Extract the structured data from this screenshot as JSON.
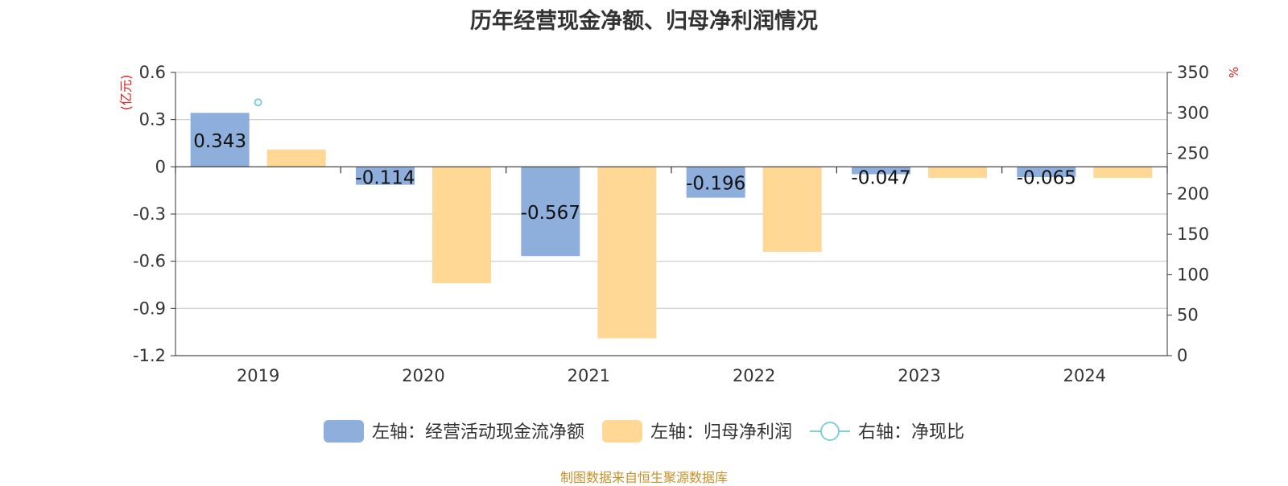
{
  "chart_data": {
    "type": "bar",
    "title": "历年经营现金净额、归母净利润情况",
    "source": "制图数据来自恒生聚源数据库",
    "categories": [
      "2019",
      "2020",
      "2021",
      "2022",
      "2023",
      "2024"
    ],
    "left_axis": {
      "unit_label": "(亿元)",
      "ylim": [
        -1.2,
        0.6
      ],
      "ticks": [
        0.6,
        0.3,
        0,
        -0.3,
        -0.6,
        -0.9,
        -1.2
      ],
      "tick_labels": [
        "0.6",
        "0.3",
        "0",
        "-0.3",
        "-0.6",
        "-0.9",
        "-1.2"
      ]
    },
    "right_axis": {
      "unit_label": "%",
      "ylim": [
        0,
        350
      ],
      "ticks": [
        350,
        300,
        250,
        200,
        150,
        100,
        50,
        0
      ],
      "tick_labels": [
        "350",
        "300",
        "250",
        "200",
        "150",
        "100",
        "50",
        "0"
      ]
    },
    "series": [
      {
        "name": "左轴：经营活动现金流净额",
        "type": "bar",
        "axis": "left",
        "color": "#8eaedb",
        "values": [
          0.343,
          -0.114,
          -0.567,
          -0.196,
          -0.047,
          -0.065
        ],
        "labels": [
          "0.343",
          "-0.114",
          "-0.567",
          "-0.196",
          "-0.047",
          "-0.065"
        ]
      },
      {
        "name": "左轴：归母净利润",
        "type": "bar",
        "axis": "left",
        "color": "#ffd896",
        "values": [
          0.11,
          -0.74,
          -1.09,
          -0.54,
          -0.07,
          -0.07
        ]
      },
      {
        "name": "右轴：净现比",
        "type": "line",
        "axis": "right",
        "color": "#7fd0dc",
        "values": [
          313,
          null,
          null,
          null,
          null,
          null
        ]
      }
    ],
    "grid": true,
    "legend_position": "bottom"
  }
}
